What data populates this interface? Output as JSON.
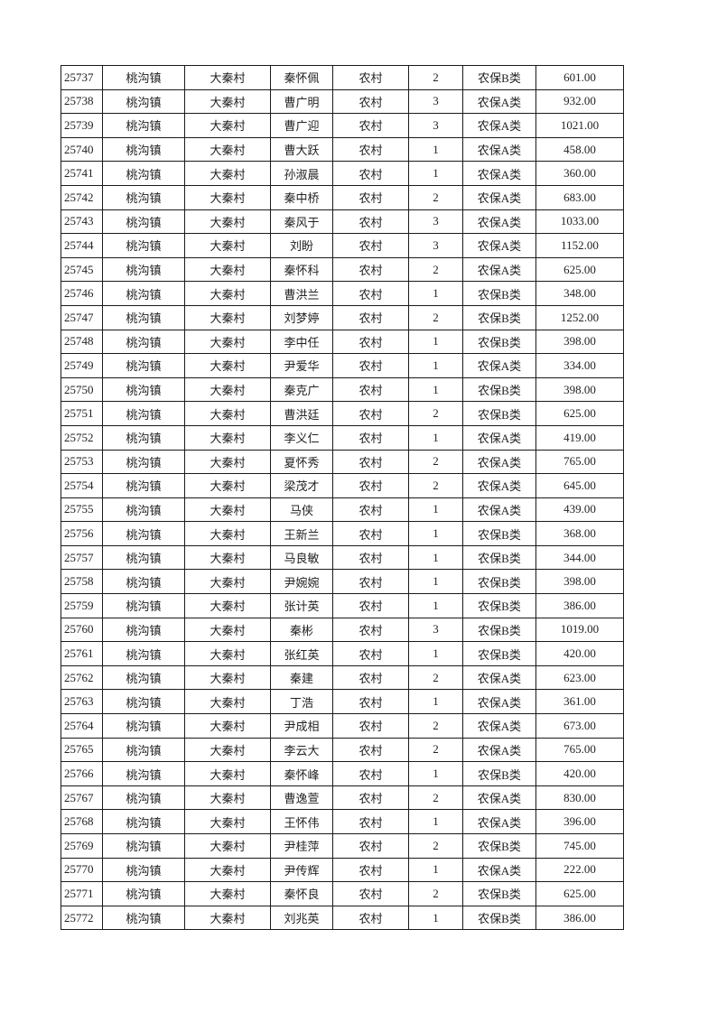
{
  "table": {
    "rows": [
      [
        "25737",
        "桃沟镇",
        "大秦村",
        "秦怀佩",
        "农村",
        "2",
        "农保B类",
        "601.00"
      ],
      [
        "25738",
        "桃沟镇",
        "大秦村",
        "曹广明",
        "农村",
        "3",
        "农保A类",
        "932.00"
      ],
      [
        "25739",
        "桃沟镇",
        "大秦村",
        "曹广迎",
        "农村",
        "3",
        "农保A类",
        "1021.00"
      ],
      [
        "25740",
        "桃沟镇",
        "大秦村",
        "曹大跃",
        "农村",
        "1",
        "农保A类",
        "458.00"
      ],
      [
        "25741",
        "桃沟镇",
        "大秦村",
        "孙淑晨",
        "农村",
        "1",
        "农保A类",
        "360.00"
      ],
      [
        "25742",
        "桃沟镇",
        "大秦村",
        "秦中桥",
        "农村",
        "2",
        "农保A类",
        "683.00"
      ],
      [
        "25743",
        "桃沟镇",
        "大秦村",
        "秦风于",
        "农村",
        "3",
        "农保A类",
        "1033.00"
      ],
      [
        "25744",
        "桃沟镇",
        "大秦村",
        "刘盼",
        "农村",
        "3",
        "农保A类",
        "1152.00"
      ],
      [
        "25745",
        "桃沟镇",
        "大秦村",
        "秦怀科",
        "农村",
        "2",
        "农保A类",
        "625.00"
      ],
      [
        "25746",
        "桃沟镇",
        "大秦村",
        "曹洪兰",
        "农村",
        "1",
        "农保B类",
        "348.00"
      ],
      [
        "25747",
        "桃沟镇",
        "大秦村",
        "刘梦婷",
        "农村",
        "2",
        "农保B类",
        "1252.00"
      ],
      [
        "25748",
        "桃沟镇",
        "大秦村",
        "李中任",
        "农村",
        "1",
        "农保B类",
        "398.00"
      ],
      [
        "25749",
        "桃沟镇",
        "大秦村",
        "尹爱华",
        "农村",
        "1",
        "农保A类",
        "334.00"
      ],
      [
        "25750",
        "桃沟镇",
        "大秦村",
        "秦克广",
        "农村",
        "1",
        "农保B类",
        "398.00"
      ],
      [
        "25751",
        "桃沟镇",
        "大秦村",
        "曹洪廷",
        "农村",
        "2",
        "农保B类",
        "625.00"
      ],
      [
        "25752",
        "桃沟镇",
        "大秦村",
        "李义仁",
        "农村",
        "1",
        "农保A类",
        "419.00"
      ],
      [
        "25753",
        "桃沟镇",
        "大秦村",
        "夏怀秀",
        "农村",
        "2",
        "农保A类",
        "765.00"
      ],
      [
        "25754",
        "桃沟镇",
        "大秦村",
        "梁茂才",
        "农村",
        "2",
        "农保A类",
        "645.00"
      ],
      [
        "25755",
        "桃沟镇",
        "大秦村",
        "马侠",
        "农村",
        "1",
        "农保A类",
        "439.00"
      ],
      [
        "25756",
        "桃沟镇",
        "大秦村",
        "王新兰",
        "农村",
        "1",
        "农保B类",
        "368.00"
      ],
      [
        "25757",
        "桃沟镇",
        "大秦村",
        "马良敏",
        "农村",
        "1",
        "农保B类",
        "344.00"
      ],
      [
        "25758",
        "桃沟镇",
        "大秦村",
        "尹婉婉",
        "农村",
        "1",
        "农保B类",
        "398.00"
      ],
      [
        "25759",
        "桃沟镇",
        "大秦村",
        "张计英",
        "农村",
        "1",
        "农保B类",
        "386.00"
      ],
      [
        "25760",
        "桃沟镇",
        "大秦村",
        "秦彬",
        "农村",
        "3",
        "农保B类",
        "1019.00"
      ],
      [
        "25761",
        "桃沟镇",
        "大秦村",
        "张红英",
        "农村",
        "1",
        "农保B类",
        "420.00"
      ],
      [
        "25762",
        "桃沟镇",
        "大秦村",
        "秦建",
        "农村",
        "2",
        "农保A类",
        "623.00"
      ],
      [
        "25763",
        "桃沟镇",
        "大秦村",
        "丁浩",
        "农村",
        "1",
        "农保A类",
        "361.00"
      ],
      [
        "25764",
        "桃沟镇",
        "大秦村",
        "尹成相",
        "农村",
        "2",
        "农保A类",
        "673.00"
      ],
      [
        "25765",
        "桃沟镇",
        "大秦村",
        "李云大",
        "农村",
        "2",
        "农保A类",
        "765.00"
      ],
      [
        "25766",
        "桃沟镇",
        "大秦村",
        "秦怀峰",
        "农村",
        "1",
        "农保B类",
        "420.00"
      ],
      [
        "25767",
        "桃沟镇",
        "大秦村",
        "曹逸萱",
        "农村",
        "2",
        "农保A类",
        "830.00"
      ],
      [
        "25768",
        "桃沟镇",
        "大秦村",
        "王怀伟",
        "农村",
        "1",
        "农保A类",
        "396.00"
      ],
      [
        "25769",
        "桃沟镇",
        "大秦村",
        "尹桂萍",
        "农村",
        "2",
        "农保B类",
        "745.00"
      ],
      [
        "25770",
        "桃沟镇",
        "大秦村",
        "尹传辉",
        "农村",
        "1",
        "农保A类",
        "222.00"
      ],
      [
        "25771",
        "桃沟镇",
        "大秦村",
        "秦怀良",
        "农村",
        "2",
        "农保B类",
        "625.00"
      ],
      [
        "25772",
        "桃沟镇",
        "大秦村",
        "刘兆英",
        "农村",
        "1",
        "农保B类",
        "386.00"
      ]
    ]
  }
}
